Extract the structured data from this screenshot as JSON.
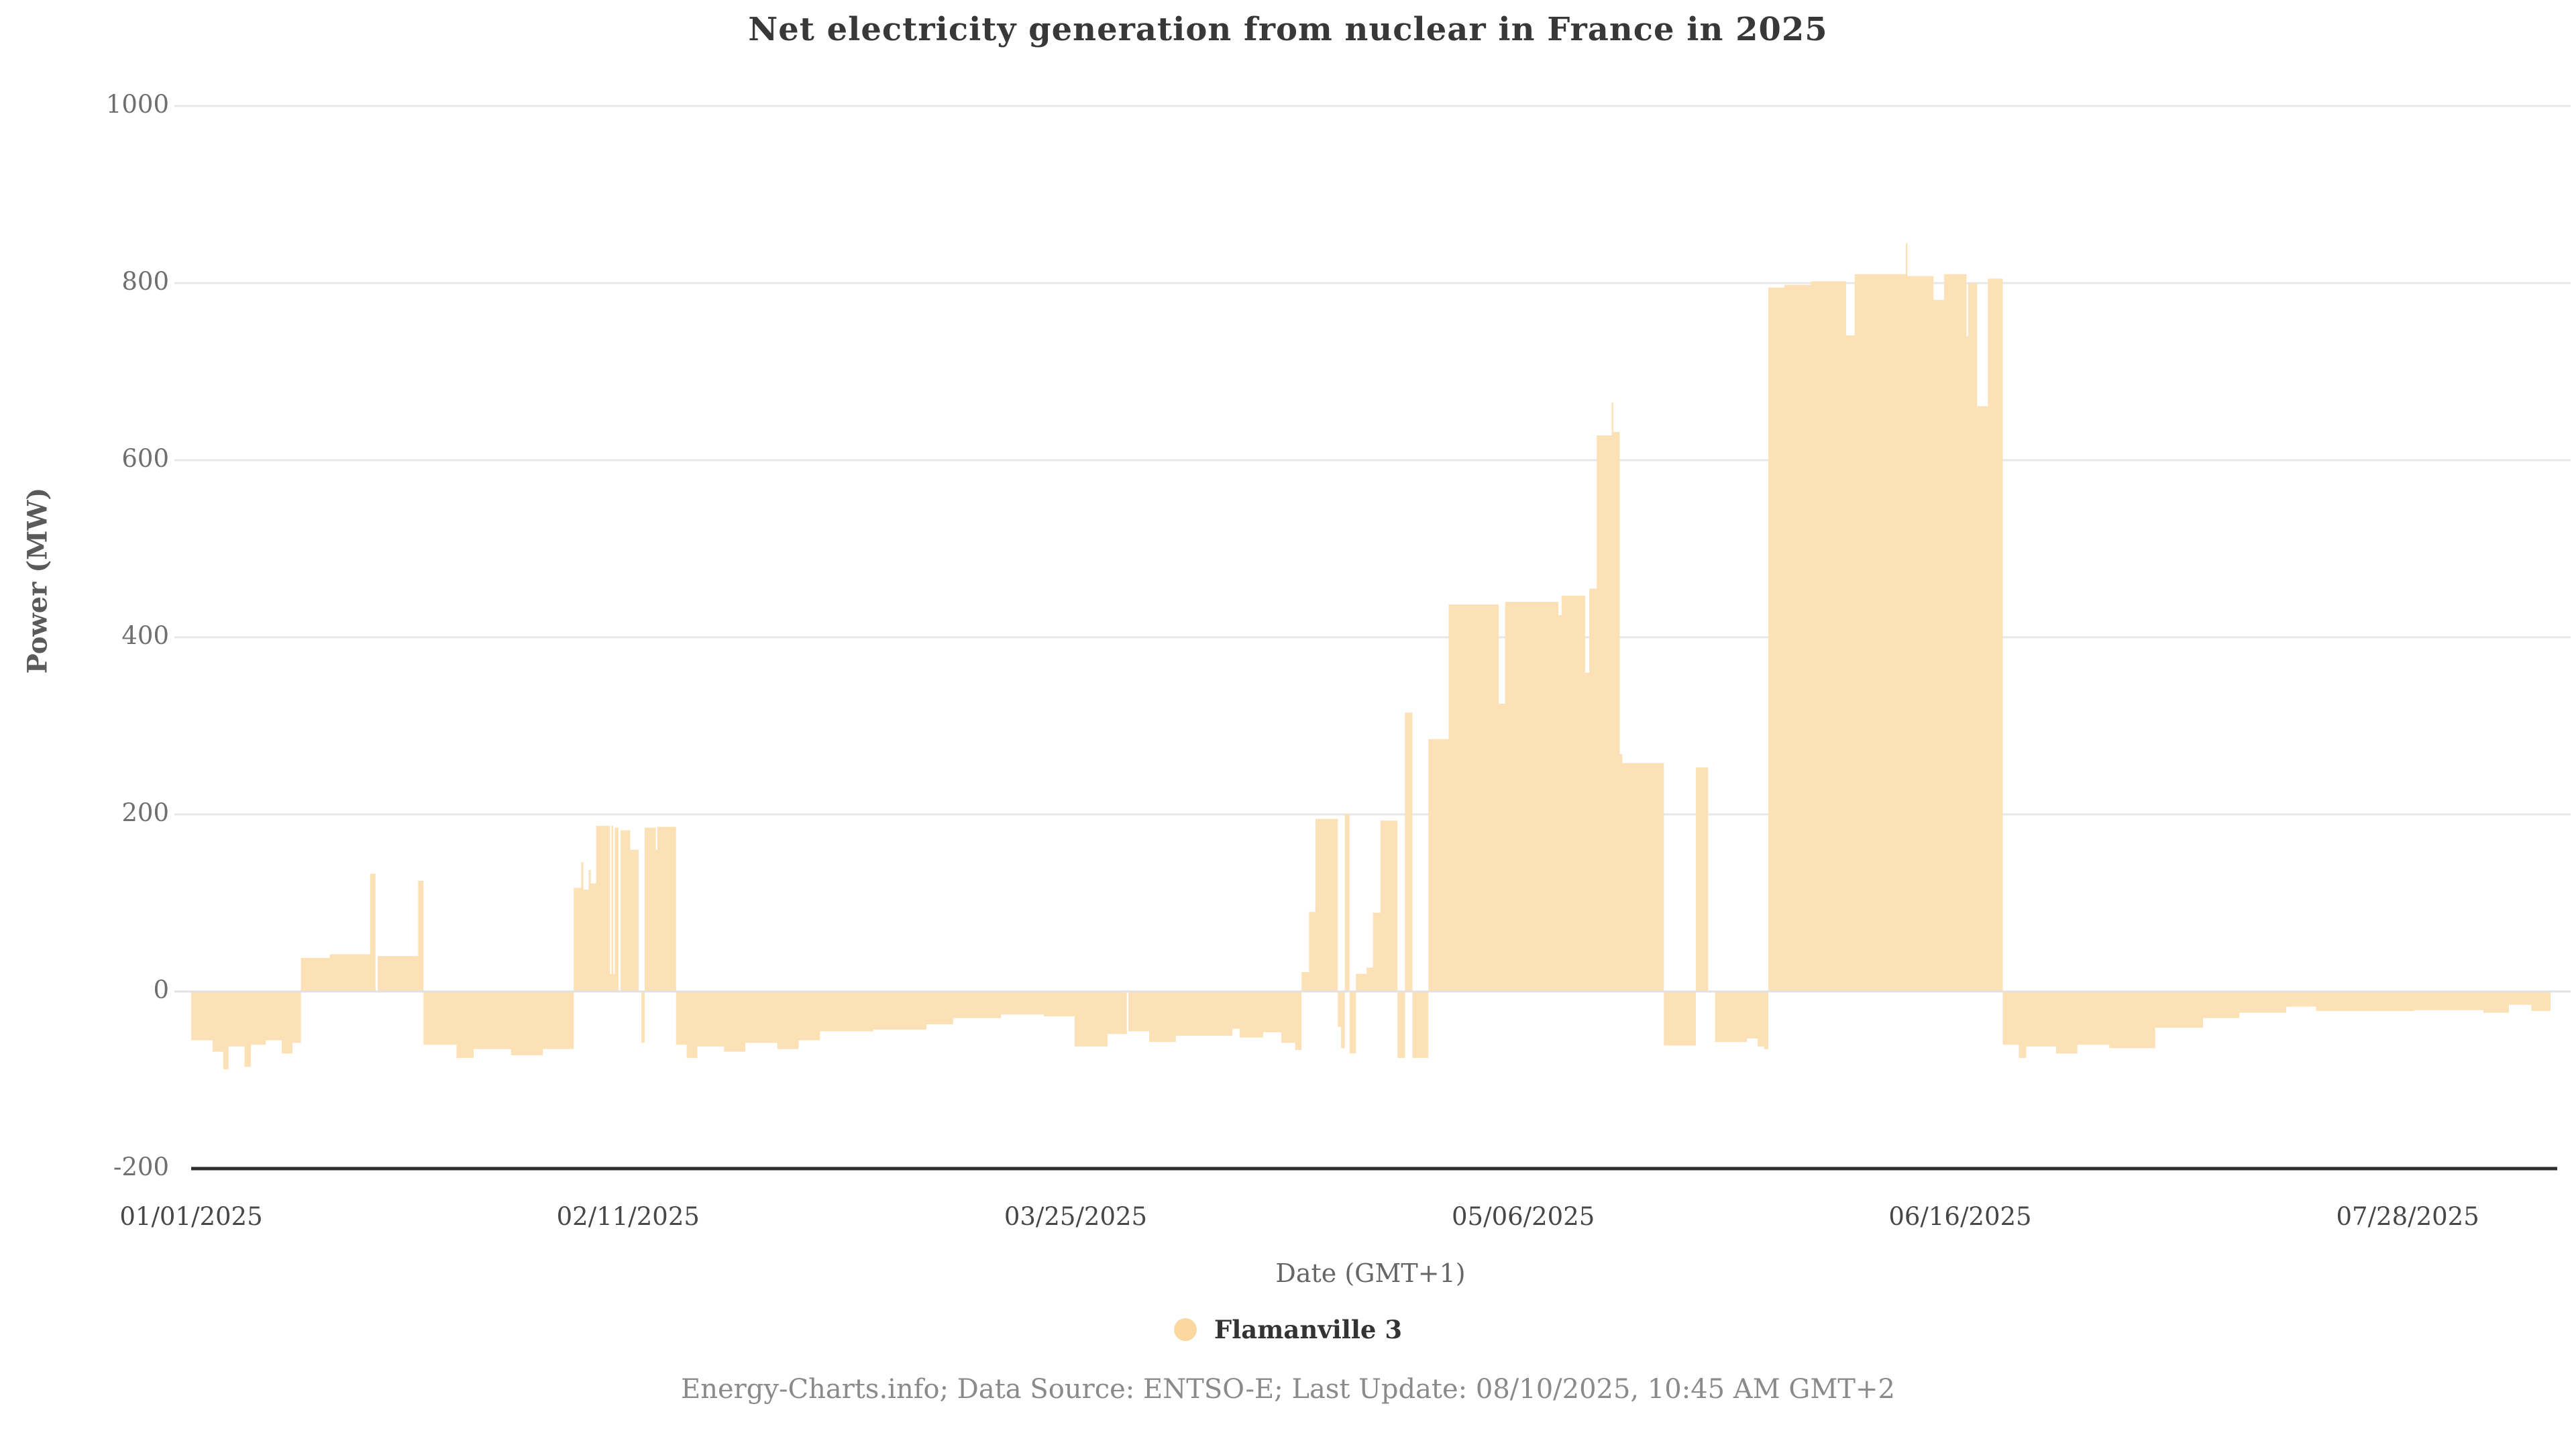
{
  "title": "Net electricity generation from nuclear in France in 2025",
  "footer": "Energy-Charts.info; Data Source: ENTSO-E; Last Update: 08/10/2025, 10:45 AM GMT+2",
  "legend": {
    "series_label": "Flamanville 3"
  },
  "y_axis": {
    "title": "Power (MW)",
    "ticks": [
      "1000",
      "800",
      "600",
      "400",
      "200",
      "0",
      "-200"
    ]
  },
  "x_axis": {
    "title": "Date (GMT+1)",
    "ticks": [
      {
        "day": 0,
        "label": "01/01/2025"
      },
      {
        "day": 41,
        "label": "02/11/2025"
      },
      {
        "day": 83,
        "label": "03/25/2025"
      },
      {
        "day": 125,
        "label": "05/06/2025"
      },
      {
        "day": 166,
        "label": "06/16/2025"
      },
      {
        "day": 208,
        "label": "07/28/2025"
      }
    ]
  },
  "colors": {
    "series_area": "#FCE0B6",
    "legend_dot": "#FAD8A0",
    "gridline": "#e7e7e7",
    "zero_line": "#e2e2e2",
    "axis_line": "#2e2e2e",
    "background": "#ffffff"
  },
  "chart_data": {
    "type": "area",
    "title": "Net electricity generation from nuclear in France in 2025",
    "xlabel": "Date (GMT+1)",
    "ylabel": "Power (MW)",
    "ylim": [
      -200,
      1000
    ],
    "grid": true,
    "legend_position": "bottom",
    "x_start_date": "01/01/2025",
    "x_domain_days": [
      0,
      221.4
    ],
    "y_tick_step": 200,
    "series": [
      {
        "name": "Flamanville 3",
        "unit": "MW",
        "color": "#FCE0B6",
        "segments_format": [
          "start_day",
          "end_day",
          "value_mw"
        ],
        "segments": [
          [
            0,
            2,
            -55
          ],
          [
            2,
            3,
            -68
          ],
          [
            3,
            3.5,
            -88
          ],
          [
            3.5,
            5,
            -62
          ],
          [
            5,
            5.6,
            -85
          ],
          [
            5.6,
            7,
            -60
          ],
          [
            7,
            8.5,
            -55
          ],
          [
            8.5,
            9.5,
            -70
          ],
          [
            9.5,
            10.3,
            -58
          ],
          [
            10.3,
            13,
            38
          ],
          [
            13,
            16.8,
            42
          ],
          [
            16.8,
            17.3,
            133
          ],
          [
            17.3,
            17.5,
            0
          ],
          [
            17.5,
            21.3,
            40
          ],
          [
            21.3,
            21.8,
            125
          ],
          [
            21.8,
            24.9,
            -60
          ],
          [
            24.9,
            26.5,
            -75
          ],
          [
            26.5,
            30,
            -65
          ],
          [
            30,
            33,
            -72
          ],
          [
            33,
            35.9,
            -65
          ],
          [
            35.9,
            36.6,
            117
          ],
          [
            36.6,
            36.8,
            146
          ],
          [
            36.8,
            37.3,
            115
          ],
          [
            37.3,
            37.5,
            137
          ],
          [
            37.5,
            38,
            122
          ],
          [
            38,
            39.3,
            187
          ],
          [
            39.3,
            39.45,
            20
          ],
          [
            39.45,
            39.6,
            187
          ],
          [
            39.6,
            39.75,
            20
          ],
          [
            39.75,
            40.1,
            185
          ],
          [
            40.1,
            40.3,
            0
          ],
          [
            40.3,
            41.2,
            182
          ],
          [
            41.2,
            42,
            160
          ],
          [
            42,
            42.25,
            0
          ],
          [
            42.25,
            42.55,
            -58
          ],
          [
            42.55,
            43.6,
            185
          ],
          [
            43.6,
            43.75,
            160
          ],
          [
            43.75,
            45.5,
            186
          ],
          [
            45.5,
            46.5,
            -60
          ],
          [
            46.5,
            47.5,
            -75
          ],
          [
            47.5,
            50,
            -62
          ],
          [
            50,
            52,
            -68
          ],
          [
            52,
            55,
            -58
          ],
          [
            55,
            57,
            -65
          ],
          [
            57,
            59,
            -55
          ],
          [
            59,
            64,
            -45
          ],
          [
            64,
            69,
            -43
          ],
          [
            69,
            71.5,
            -37
          ],
          [
            71.5,
            76,
            -30
          ],
          [
            76,
            80,
            -26
          ],
          [
            80,
            82.9,
            -28
          ],
          [
            82.9,
            86,
            -62
          ],
          [
            86,
            87.8,
            -48
          ],
          [
            87.8,
            87.95,
            0
          ],
          [
            87.95,
            89.9,
            -45
          ],
          [
            89.9,
            92.4,
            -57
          ],
          [
            92.4,
            97.7,
            -50
          ],
          [
            97.7,
            98.4,
            -42
          ],
          [
            98.4,
            100.6,
            -52
          ],
          [
            100.6,
            102.3,
            -46
          ],
          [
            102.3,
            103.6,
            -58
          ],
          [
            103.6,
            104.2,
            -66
          ],
          [
            104.2,
            104.9,
            22
          ],
          [
            104.9,
            105.5,
            90
          ],
          [
            105.5,
            107.6,
            195
          ],
          [
            107.6,
            107.9,
            -40
          ],
          [
            107.9,
            108.25,
            -64
          ],
          [
            108.25,
            108.7,
            200
          ],
          [
            108.7,
            109.3,
            -70
          ],
          [
            109.3,
            110.3,
            20
          ],
          [
            110.3,
            110.9,
            27
          ],
          [
            110.9,
            111.6,
            89
          ],
          [
            111.6,
            113.2,
            193
          ],
          [
            113.2,
            113.9,
            -75
          ],
          [
            113.9,
            114.6,
            315
          ],
          [
            114.6,
            116.1,
            -75
          ],
          [
            116.1,
            118,
            285
          ],
          [
            118,
            122.7,
            437
          ],
          [
            122.7,
            123.3,
            325
          ],
          [
            123.3,
            128.3,
            440
          ],
          [
            128.3,
            128.6,
            425
          ],
          [
            128.6,
            130.8,
            447
          ],
          [
            130.8,
            131.2,
            360
          ],
          [
            131.2,
            131.9,
            455
          ],
          [
            131.9,
            133.3,
            628
          ],
          [
            133.3,
            133.45,
            665
          ],
          [
            133.45,
            134.05,
            632
          ],
          [
            134.05,
            134.3,
            268
          ],
          [
            134.3,
            138.2,
            258
          ],
          [
            138.2,
            141.2,
            -61
          ],
          [
            141.2,
            142.35,
            253
          ],
          [
            142.35,
            143,
            0
          ],
          [
            143,
            146,
            -57
          ],
          [
            146,
            147,
            -53
          ],
          [
            147,
            147.6,
            -62
          ],
          [
            147.6,
            148,
            -65
          ],
          [
            148,
            149.5,
            795
          ],
          [
            149.5,
            152,
            798
          ],
          [
            152,
            155.3,
            802
          ],
          [
            155.3,
            156.1,
            741
          ],
          [
            156.1,
            160.9,
            810
          ],
          [
            160.9,
            161.05,
            845
          ],
          [
            161.05,
            163.5,
            808
          ],
          [
            163.5,
            164.5,
            781
          ],
          [
            164.5,
            166.6,
            810
          ],
          [
            166.6,
            166.75,
            740
          ],
          [
            166.75,
            167.6,
            800
          ],
          [
            167.6,
            168.6,
            661
          ],
          [
            168.6,
            170,
            805
          ],
          [
            170,
            171.5,
            -60
          ],
          [
            171.5,
            172.2,
            -75
          ],
          [
            172.2,
            175,
            -62
          ],
          [
            175,
            177,
            -70
          ],
          [
            177,
            180,
            -60
          ],
          [
            180,
            184.3,
            -64
          ],
          [
            184.3,
            188.8,
            -41
          ],
          [
            188.8,
            192.2,
            -30
          ],
          [
            192.2,
            196.6,
            -24
          ],
          [
            196.6,
            199.4,
            -17
          ],
          [
            199.4,
            208.6,
            -22
          ],
          [
            208.6,
            215.1,
            -21
          ],
          [
            215.1,
            217.5,
            -24
          ],
          [
            217.5,
            219.6,
            -15
          ],
          [
            219.6,
            221.4,
            -22
          ]
        ]
      }
    ]
  }
}
